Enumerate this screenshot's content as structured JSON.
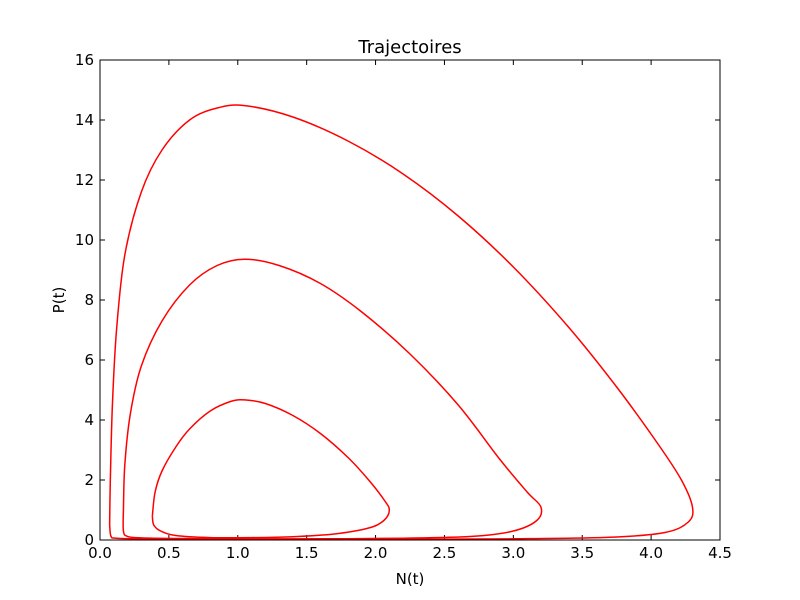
{
  "chart_data": {
    "type": "line",
    "title": "Trajectoires",
    "xlabel": "N(t)",
    "ylabel": "P(t)",
    "xlim": [
      0,
      4.5
    ],
    "ylim": [
      0,
      16
    ],
    "xticks": [
      "0.0",
      "0.5",
      "1.0",
      "1.5",
      "2.0",
      "2.5",
      "3.0",
      "3.5",
      "4.0",
      "4.5"
    ],
    "yticks": [
      "0",
      "2",
      "4",
      "6",
      "8",
      "10",
      "12",
      "14",
      "16"
    ],
    "grid": false,
    "series_color": "#ff0000",
    "series": [
      {
        "points": [
          [
            0.38,
            0.8
          ],
          [
            0.4,
            1.6
          ],
          [
            0.45,
            2.3
          ],
          [
            0.55,
            3.1
          ],
          [
            0.65,
            3.7
          ],
          [
            0.8,
            4.3
          ],
          [
            0.95,
            4.62
          ],
          [
            1.05,
            4.67
          ],
          [
            1.2,
            4.55
          ],
          [
            1.4,
            4.15
          ],
          [
            1.6,
            3.55
          ],
          [
            1.8,
            2.75
          ],
          [
            1.95,
            2.0
          ],
          [
            2.06,
            1.35
          ],
          [
            2.1,
            1.0
          ],
          [
            2.06,
            0.65
          ],
          [
            1.95,
            0.4
          ],
          [
            1.7,
            0.2
          ],
          [
            1.4,
            0.11
          ],
          [
            1.1,
            0.08
          ],
          [
            0.8,
            0.08
          ],
          [
            0.55,
            0.15
          ],
          [
            0.44,
            0.3
          ],
          [
            0.39,
            0.5
          ],
          [
            0.38,
            0.8
          ]
        ]
      },
      {
        "points": [
          [
            0.17,
            1.0
          ],
          [
            0.18,
            2.5
          ],
          [
            0.22,
            4.2
          ],
          [
            0.3,
            5.8
          ],
          [
            0.45,
            7.3
          ],
          [
            0.65,
            8.5
          ],
          [
            0.85,
            9.15
          ],
          [
            1.05,
            9.36
          ],
          [
            1.3,
            9.15
          ],
          [
            1.6,
            8.55
          ],
          [
            1.9,
            7.6
          ],
          [
            2.25,
            6.2
          ],
          [
            2.6,
            4.5
          ],
          [
            2.9,
            2.7
          ],
          [
            3.1,
            1.6
          ],
          [
            3.2,
            1.1
          ],
          [
            3.17,
            0.65
          ],
          [
            3.0,
            0.3
          ],
          [
            2.7,
            0.12
          ],
          [
            2.2,
            0.06
          ],
          [
            1.6,
            0.04
          ],
          [
            1.0,
            0.04
          ],
          [
            0.55,
            0.05
          ],
          [
            0.3,
            0.07
          ],
          [
            0.2,
            0.12
          ],
          [
            0.17,
            0.3
          ],
          [
            0.17,
            1.0
          ]
        ]
      },
      {
        "points": [
          [
            0.07,
            0.5
          ],
          [
            0.075,
            2.0
          ],
          [
            0.09,
            4.5
          ],
          [
            0.12,
            7.0
          ],
          [
            0.18,
            9.5
          ],
          [
            0.3,
            11.6
          ],
          [
            0.45,
            13.0
          ],
          [
            0.65,
            14.0
          ],
          [
            0.85,
            14.4
          ],
          [
            1.05,
            14.48
          ],
          [
            1.4,
            14.1
          ],
          [
            1.8,
            13.3
          ],
          [
            2.2,
            12.2
          ],
          [
            2.6,
            10.8
          ],
          [
            3.0,
            9.1
          ],
          [
            3.4,
            7.1
          ],
          [
            3.75,
            5.1
          ],
          [
            4.05,
            3.2
          ],
          [
            4.22,
            2.0
          ],
          [
            4.3,
            1.1
          ],
          [
            4.27,
            0.6
          ],
          [
            4.1,
            0.25
          ],
          [
            3.7,
            0.09
          ],
          [
            3.0,
            0.04
          ],
          [
            2.2,
            0.03
          ],
          [
            1.4,
            0.03
          ],
          [
            0.7,
            0.03
          ],
          [
            0.3,
            0.04
          ],
          [
            0.12,
            0.06
          ],
          [
            0.08,
            0.12
          ],
          [
            0.07,
            0.5
          ]
        ]
      }
    ]
  }
}
